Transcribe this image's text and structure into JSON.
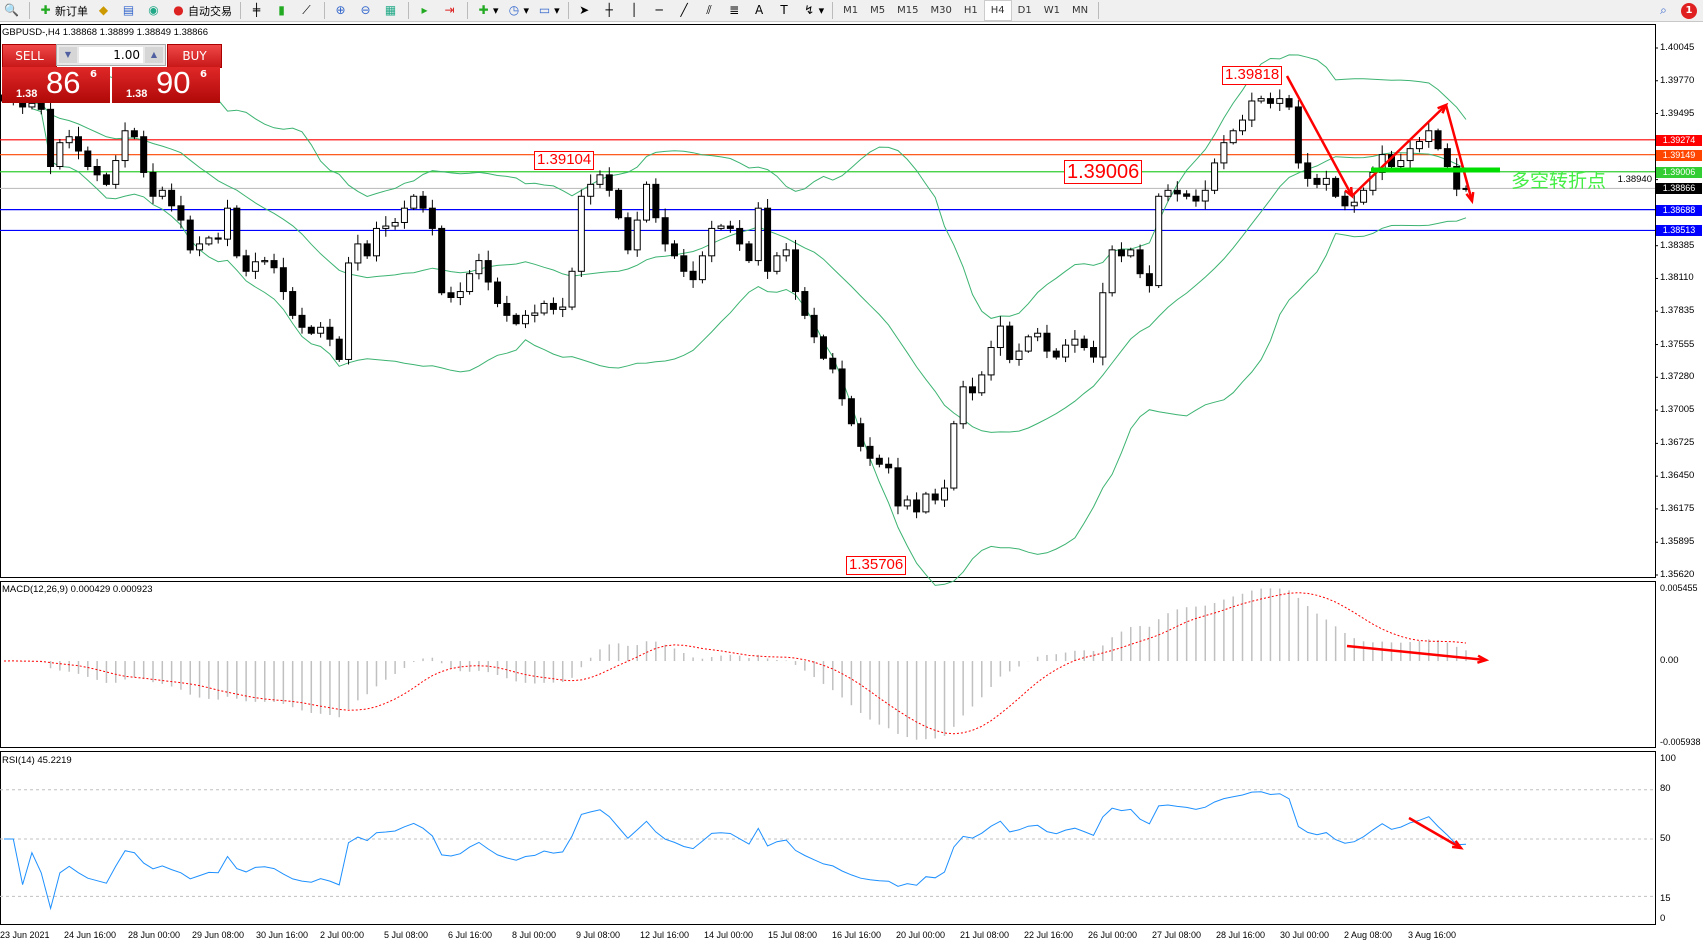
{
  "toolbar": {
    "new_order": "新订单",
    "auto_trading": "自动交易",
    "timeframes": [
      "M1",
      "M5",
      "M15",
      "M30",
      "H1",
      "H4",
      "D1",
      "W1",
      "MN"
    ],
    "active_timeframe": "H4",
    "notification_count": "1"
  },
  "chart": {
    "title": "GBPUSD-,H4  1.38868 1.38899 1.38849 1.38866",
    "trade_panel": {
      "sell_label": "SELL",
      "buy_label": "BUY",
      "lot": "1.00",
      "sell_price": {
        "prefix": "1.38",
        "big": "86",
        "sup": "6"
      },
      "buy_price": {
        "prefix": "1.38",
        "big": "90",
        "sup": "6"
      }
    },
    "price_axis": [
      "1.40045",
      "1.39770",
      "1.39495",
      "1.38940",
      "1.38385",
      "1.38110",
      "1.37835",
      "1.37555",
      "1.37280",
      "1.37005",
      "1.36725",
      "1.36450",
      "1.36175",
      "1.35895",
      "1.35620"
    ],
    "levels": [
      {
        "price": "1.39274",
        "color": "#ff0000"
      },
      {
        "price": "1.39149",
        "color": "#ff4500"
      },
      {
        "price": "1.39006",
        "color": "#32cd32"
      },
      {
        "price": "1.38866",
        "color": "#000000"
      },
      {
        "price": "1.38688",
        "color": "#0000ff"
      },
      {
        "price": "1.38513",
        "color": "#0000ff"
      }
    ],
    "annotations": {
      "high_label": "1.39818",
      "low_label": "1.35706",
      "mid_label": "1.39104",
      "pivot_label": "1.39006",
      "pivot_text": "多空转折点"
    },
    "dates": [
      "23 Jun 2021",
      "24 Jun 16:00",
      "28 Jun 00:00",
      "29 Jun 08:00",
      "30 Jun 16:00",
      "2 Jul 00:00",
      "5 Jul 08:00",
      "6 Jul 16:00",
      "8 Jul 00:00",
      "9 Jul 08:00",
      "12 Jul 16:00",
      "14 Jul 00:00",
      "15 Jul 08:00",
      "16 Jul 16:00",
      "20 Jul 00:00",
      "21 Jul 08:00",
      "22 Jul 16:00",
      "26 Jul 00:00",
      "27 Jul 08:00",
      "28 Jul 16:00",
      "30 Jul 00:00",
      "2 Aug 08:00",
      "3 Aug 16:00"
    ]
  },
  "macd": {
    "label": "MACD(12,26,9) 0.000429 0.000923",
    "axis": [
      "0.005455",
      "0.00",
      "-0.005938"
    ]
  },
  "rsi": {
    "label": "RSI(14) 45.2219",
    "axis": [
      "100",
      "80",
      "50",
      "15",
      "0"
    ]
  },
  "chart_data": {
    "type": "line",
    "symbol": "GBPUSD",
    "timeframe": "H4",
    "ylim": [
      1.3562,
      1.40045
    ],
    "closes": [
      1.396,
      1.3962,
      1.3955,
      1.3958,
      1.3953,
      1.3905,
      1.3925,
      1.393,
      1.3918,
      1.3905,
      1.3898,
      1.389,
      1.391,
      1.3935,
      1.393,
      1.39,
      1.388,
      1.3885,
      1.3872,
      1.386,
      1.3835,
      1.384,
      1.3845,
      1.3844,
      1.387,
      1.383,
      1.3817,
      1.3825,
      1.3826,
      1.382,
      1.38,
      1.378,
      1.377,
      1.3765,
      1.377,
      1.376,
      1.3743,
      1.3824,
      1.384,
      1.383,
      1.3853,
      1.3855,
      1.3858,
      1.387,
      1.388,
      1.387,
      1.3853,
      1.3799,
      1.3795,
      1.38,
      1.3815,
      1.3826,
      1.3808,
      1.379,
      1.378,
      1.3773,
      1.378,
      1.3782,
      1.379,
      1.3785,
      1.3787,
      1.3817,
      1.388,
      1.389,
      1.3898,
      1.3885,
      1.3862,
      1.3835,
      1.386,
      1.389,
      1.3862,
      1.384,
      1.383,
      1.3817,
      1.381,
      1.383,
      1.3853,
      1.3855,
      1.3853,
      1.384,
      1.3826,
      1.387,
      1.3817,
      1.383,
      1.3835,
      1.38,
      1.378,
      1.3762,
      1.3744,
      1.3735,
      1.371,
      1.3689,
      1.367,
      1.366,
      1.3655,
      1.3652,
      1.362,
      1.3625,
      1.3615,
      1.363,
      1.3625,
      1.3635,
      1.3689,
      1.372,
      1.3715,
      1.373,
      1.3753,
      1.3771,
      1.3743,
      1.375,
      1.3762,
      1.3765,
      1.375,
      1.3745,
      1.3755,
      1.376,
      1.3753,
      1.3745,
      1.3799,
      1.3835,
      1.383,
      1.3835,
      1.3815,
      1.3805,
      1.388,
      1.3885,
      1.3882,
      1.388,
      1.3876,
      1.3885,
      1.3908,
      1.3925,
      1.3935,
      1.3944,
      1.396,
      1.3962,
      1.3958,
      1.3962,
      1.3955,
      1.3908,
      1.3895,
      1.389,
      1.3895,
      1.388,
      1.3872,
      1.3875,
      1.3885,
      1.39,
      1.3915,
      1.3905,
      1.391,
      1.392,
      1.3926,
      1.3935,
      1.392,
      1.3905,
      1.3886,
      1.38866
    ],
    "indicators": [
      "Bollinger Bands",
      "MACD(12,26,9)",
      "RSI(14)"
    ],
    "rsi_levels": [
      15,
      50,
      80
    ],
    "macd_range": [
      -0.005938,
      0.005455
    ],
    "colors": {
      "bands": "#3cb371",
      "macd_hist": "#c0c0c0",
      "macd_signal": "#ff0000",
      "rsi": "#1e90ff",
      "arrows": "#ff0000",
      "pivot_bar": "#00dd00"
    }
  }
}
